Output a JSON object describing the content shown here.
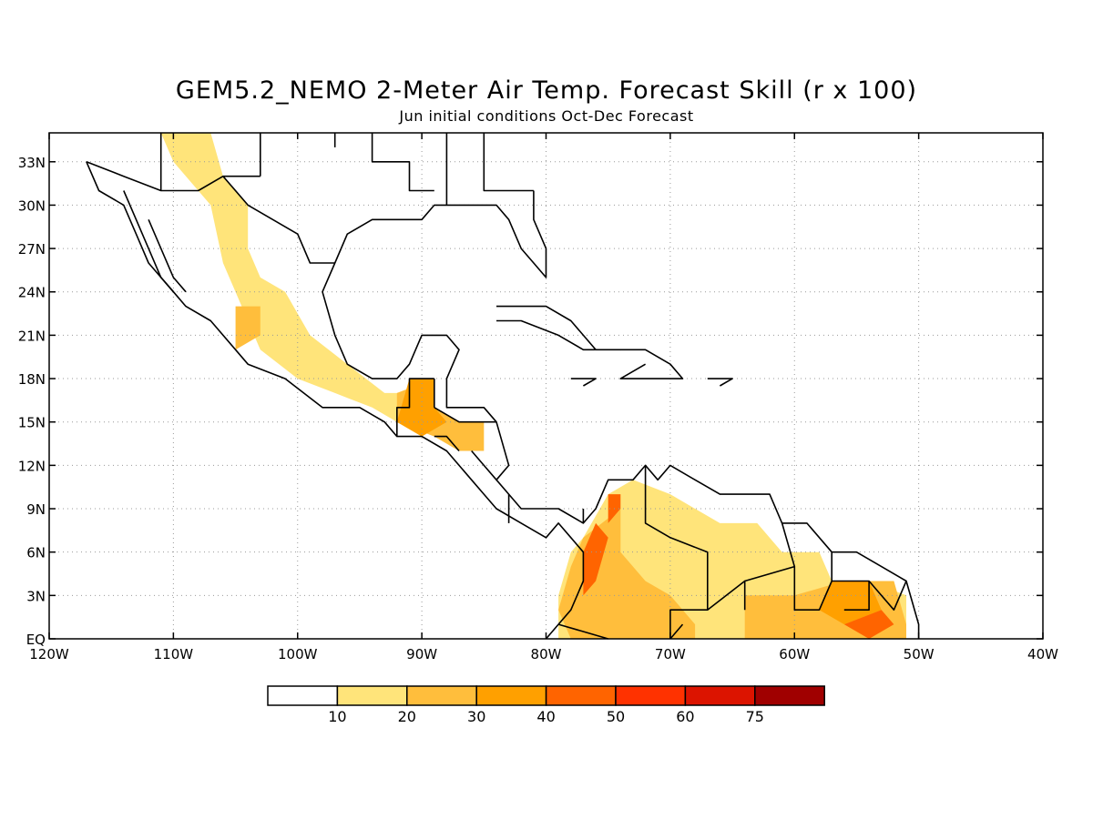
{
  "title": "GEM5.2_NEMO 2-Meter Air Temp. Forecast Skill (r x 100)",
  "subtitle": "Jun initial conditions  Oct-Dec Forecast",
  "map": {
    "lon_range": [
      -120,
      -40
    ],
    "lat_range": [
      0,
      35
    ],
    "grid": true,
    "lon_ticks": [
      {
        "value": -120,
        "label": "120W"
      },
      {
        "value": -110,
        "label": "110W"
      },
      {
        "value": -100,
        "label": "100W"
      },
      {
        "value": -90,
        "label": "90W"
      },
      {
        "value": -80,
        "label": "80W"
      },
      {
        "value": -70,
        "label": "70W"
      },
      {
        "value": -60,
        "label": "60W"
      },
      {
        "value": -50,
        "label": "50W"
      },
      {
        "value": -40,
        "label": "40W"
      }
    ],
    "lat_ticks": [
      {
        "value": 0,
        "label": "EQ"
      },
      {
        "value": 3,
        "label": "3N"
      },
      {
        "value": 6,
        "label": "6N"
      },
      {
        "value": 9,
        "label": "9N"
      },
      {
        "value": 12,
        "label": "12N"
      },
      {
        "value": 15,
        "label": "15N"
      },
      {
        "value": 18,
        "label": "18N"
      },
      {
        "value": 21,
        "label": "21N"
      },
      {
        "value": 24,
        "label": "24N"
      },
      {
        "value": 27,
        "label": "27N"
      },
      {
        "value": 30,
        "label": "30N"
      },
      {
        "value": 33,
        "label": "33N"
      }
    ]
  },
  "colorbar": {
    "labels": [
      "10",
      "20",
      "30",
      "40",
      "50",
      "60",
      "75"
    ],
    "colors": [
      "#ffffff",
      "#ffe47a",
      "#ffbe3c",
      "#ffa000",
      "#ff6400",
      "#ff3200",
      "#dc1400",
      "#a00000"
    ]
  },
  "skill_regions": [
    {
      "level": 1,
      "points": [
        [
          -111,
          35
        ],
        [
          -107,
          35
        ],
        [
          -106,
          32
        ],
        [
          -104,
          30
        ],
        [
          -104,
          27
        ],
        [
          -103,
          25
        ],
        [
          -101,
          24
        ],
        [
          -99,
          21
        ],
        [
          -96,
          19
        ],
        [
          -93,
          17
        ],
        [
          -90,
          17
        ],
        [
          -88,
          15
        ],
        [
          -90,
          14
        ],
        [
          -94,
          16
        ],
        [
          -97,
          17
        ],
        [
          -100,
          18
        ],
        [
          -103,
          20
        ],
        [
          -104,
          22
        ],
        [
          -106,
          26
        ],
        [
          -107,
          30
        ],
        [
          -110,
          33
        ]
      ]
    },
    {
      "level": 1,
      "points": [
        [
          -77,
          7
        ],
        [
          -75,
          10
        ],
        [
          -73,
          11
        ],
        [
          -70,
          10
        ],
        [
          -68,
          9
        ],
        [
          -66,
          8
        ],
        [
          -63,
          8
        ],
        [
          -61,
          6
        ],
        [
          -58,
          6
        ],
        [
          -57,
          4
        ],
        [
          -56,
          3
        ],
        [
          -54,
          4
        ],
        [
          -51,
          3
        ],
        [
          -51,
          0
        ],
        [
          -79,
          0
        ],
        [
          -79,
          3
        ],
        [
          -78,
          6
        ]
      ]
    },
    {
      "level": 2,
      "points": [
        [
          -105,
          23
        ],
        [
          -103,
          23
        ],
        [
          -103,
          21
        ],
        [
          -105,
          20
        ]
      ]
    },
    {
      "level": 2,
      "points": [
        [
          -92,
          17
        ],
        [
          -89,
          18
        ],
        [
          -89,
          16
        ],
        [
          -87,
          15
        ],
        [
          -85,
          15
        ],
        [
          -85,
          13
        ],
        [
          -87,
          13
        ],
        [
          -89,
          14
        ],
        [
          -92,
          15
        ]
      ]
    },
    {
      "level": 2,
      "points": [
        [
          -77,
          7
        ],
        [
          -74,
          9
        ],
        [
          -74,
          6
        ],
        [
          -72,
          4
        ],
        [
          -70,
          3
        ],
        [
          -68,
          1
        ],
        [
          -68,
          0
        ],
        [
          -78,
          0
        ],
        [
          -79,
          2
        ],
        [
          -78,
          5
        ]
      ]
    },
    {
      "level": 2,
      "points": [
        [
          -64,
          3
        ],
        [
          -60,
          3
        ],
        [
          -56,
          4
        ],
        [
          -52,
          4
        ],
        [
          -51,
          1
        ],
        [
          -51,
          0
        ],
        [
          -64,
          0
        ]
      ]
    },
    {
      "level": 3,
      "points": [
        [
          -91,
          18
        ],
        [
          -89,
          18
        ],
        [
          -89,
          16
        ],
        [
          -88,
          15
        ],
        [
          -90,
          14
        ],
        [
          -92,
          15
        ]
      ]
    },
    {
      "level": 3,
      "points": [
        [
          -57,
          4
        ],
        [
          -54,
          4
        ],
        [
          -53,
          2
        ],
        [
          -56,
          1
        ],
        [
          -58,
          2
        ]
      ]
    },
    {
      "level": 4,
      "points": [
        [
          -76,
          8
        ],
        [
          -75,
          7
        ],
        [
          -76,
          4
        ],
        [
          -77,
          3
        ],
        [
          -77,
          6
        ]
      ]
    },
    {
      "level": 4,
      "points": [
        [
          -75,
          10
        ],
        [
          -74,
          10
        ],
        [
          -74,
          9
        ],
        [
          -75,
          8
        ]
      ]
    },
    {
      "level": 4,
      "points": [
        [
          -56,
          1
        ],
        [
          -53,
          2
        ],
        [
          -52,
          1
        ],
        [
          -54,
          0
        ]
      ]
    }
  ],
  "coast_lines": [
    [
      [
        -117,
        33
      ],
      [
        -116,
        31
      ],
      [
        -114,
        30
      ],
      [
        -113,
        28
      ],
      [
        -112,
        26
      ],
      [
        -110,
        24
      ],
      [
        -109,
        23
      ],
      [
        -107,
        22
      ],
      [
        -105,
        20
      ],
      [
        -104,
        19
      ],
      [
        -101,
        18
      ],
      [
        -98,
        16
      ],
      [
        -95,
        16
      ],
      [
        -93,
        15
      ],
      [
        -92,
        14
      ],
      [
        -90,
        14
      ],
      [
        -88,
        13
      ],
      [
        -86,
        11
      ],
      [
        -85,
        10
      ],
      [
        -84,
        9
      ],
      [
        -82,
        8
      ],
      [
        -80,
        7
      ],
      [
        -79,
        8
      ],
      [
        -78,
        7
      ],
      [
        -77,
        6
      ],
      [
        -77,
        4
      ],
      [
        -78,
        2
      ],
      [
        -79,
        1
      ],
      [
        -80,
        0
      ]
    ],
    [
      [
        -114,
        31
      ],
      [
        -113,
        29
      ],
      [
        -112,
        27
      ],
      [
        -111,
        25
      ],
      [
        -110,
        24
      ]
    ],
    [
      [
        -112,
        29
      ],
      [
        -111,
        27
      ],
      [
        -110,
        25
      ],
      [
        -109,
        24
      ]
    ],
    [
      [
        -81,
        31
      ],
      [
        -81,
        29
      ],
      [
        -80,
        27
      ],
      [
        -80,
        25
      ],
      [
        -81,
        26
      ],
      [
        -82,
        27
      ],
      [
        -83,
        29
      ],
      [
        -84,
        30
      ],
      [
        -86,
        30
      ],
      [
        -88,
        30
      ],
      [
        -89,
        30
      ],
      [
        -90,
        29
      ],
      [
        -92,
        29
      ],
      [
        -94,
        29
      ],
      [
        -96,
        28
      ],
      [
        -97,
        26
      ],
      [
        -98,
        24
      ],
      [
        -97,
        21
      ],
      [
        -96,
        19
      ],
      [
        -94,
        18
      ],
      [
        -92,
        18
      ],
      [
        -91,
        19
      ],
      [
        -90,
        21
      ],
      [
        -88,
        21
      ],
      [
        -87,
        20
      ],
      [
        -88,
        18
      ],
      [
        -88,
        16
      ],
      [
        -87,
        16
      ],
      [
        -85,
        16
      ],
      [
        -84,
        15
      ],
      [
        -83,
        12
      ],
      [
        -84,
        11
      ],
      [
        -83,
        10
      ],
      [
        -82,
        9
      ],
      [
        -81,
        9
      ],
      [
        -80,
        9
      ],
      [
        -79,
        9
      ],
      [
        -77,
        8
      ],
      [
        -76,
        9
      ],
      [
        -75,
        11
      ],
      [
        -73,
        11
      ],
      [
        -72,
        12
      ],
      [
        -71,
        11
      ],
      [
        -70,
        12
      ],
      [
        -68,
        11
      ],
      [
        -66,
        10
      ],
      [
        -64,
        10
      ],
      [
        -62,
        10
      ],
      [
        -61,
        8
      ],
      [
        -59,
        8
      ],
      [
        -57,
        6
      ],
      [
        -55,
        6
      ],
      [
        -53,
        5
      ],
      [
        -51,
        4
      ],
      [
        -50,
        1
      ],
      [
        -50,
        0
      ]
    ],
    [
      [
        -84,
        23
      ],
      [
        -82,
        23
      ],
      [
        -80,
        23
      ],
      [
        -78,
        22
      ],
      [
        -76,
        20
      ],
      [
        -74,
        20
      ],
      [
        -77,
        20
      ],
      [
        -79,
        21
      ],
      [
        -82,
        22
      ],
      [
        -84,
        22
      ]
    ],
    [
      [
        -74,
        20
      ],
      [
        -72,
        20
      ],
      [
        -70,
        19
      ],
      [
        -69,
        18
      ],
      [
        -71,
        18
      ],
      [
        -72,
        18
      ],
      [
        -74,
        18
      ],
      [
        -72,
        19
      ]
    ],
    [
      [
        -78,
        18
      ],
      [
        -77,
        18
      ],
      [
        -76,
        18
      ],
      [
        -77,
        17.5
      ]
    ],
    [
      [
        -67,
        18
      ],
      [
        -66,
        18
      ],
      [
        -65,
        18
      ],
      [
        -66,
        17.5
      ]
    ]
  ],
  "border_lines": [
    [
      [
        -117,
        33
      ],
      [
        -114,
        32
      ],
      [
        -111,
        31
      ],
      [
        -108,
        31
      ],
      [
        -106,
        32
      ],
      [
        -104,
        30
      ],
      [
        -102,
        29
      ],
      [
        -100,
        28
      ],
      [
        -99,
        26
      ],
      [
        -97,
        26
      ]
    ],
    [
      [
        -111,
        31
      ],
      [
        -111,
        35
      ]
    ],
    [
      [
        -103,
        32
      ],
      [
        -103,
        35
      ]
    ],
    [
      [
        -103,
        32
      ],
      [
        -106,
        32
      ]
    ],
    [
      [
        -97,
        35
      ],
      [
        -97,
        34
      ]
    ],
    [
      [
        -94,
        35
      ],
      [
        -94,
        33
      ],
      [
        -91,
        33
      ],
      [
        -91,
        31
      ],
      [
        -89,
        31
      ]
    ],
    [
      [
        -88,
        35
      ],
      [
        -88,
        30
      ]
    ],
    [
      [
        -85,
        35
      ],
      [
        -85,
        31
      ],
      [
        -81,
        31
      ]
    ],
    [
      [
        -92,
        14
      ],
      [
        -92,
        16
      ],
      [
        -91,
        16
      ],
      [
        -91,
        18
      ],
      [
        -89,
        18
      ]
    ],
    [
      [
        -89,
        18
      ],
      [
        -89,
        16
      ]
    ],
    [
      [
        -89,
        16
      ],
      [
        -87,
        15
      ],
      [
        -85,
        15
      ],
      [
        -84,
        15
      ]
    ],
    [
      [
        -89,
        14
      ],
      [
        -88,
        14
      ],
      [
        -87,
        13
      ]
    ],
    [
      [
        -86,
        13
      ],
      [
        -85,
        12
      ],
      [
        -84,
        11
      ]
    ],
    [
      [
        -83,
        10
      ],
      [
        -83,
        8
      ]
    ],
    [
      [
        -77,
        8
      ],
      [
        -77,
        9
      ]
    ],
    [
      [
        -72,
        12
      ],
      [
        -72,
        8
      ],
      [
        -70,
        7
      ],
      [
        -67,
        6
      ],
      [
        -67,
        2
      ],
      [
        -70,
        2
      ],
      [
        -70,
        0
      ]
    ],
    [
      [
        -79,
        1
      ],
      [
        -75,
        0
      ]
    ],
    [
      [
        -70,
        0
      ],
      [
        -69,
        1
      ]
    ],
    [
      [
        -67,
        2
      ],
      [
        -64,
        4
      ],
      [
        -64,
        2
      ]
    ],
    [
      [
        -64,
        4
      ],
      [
        -60,
        5
      ],
      [
        -61,
        8
      ]
    ],
    [
      [
        -60,
        5
      ],
      [
        -60,
        2
      ],
      [
        -58,
        2
      ],
      [
        -57,
        4
      ],
      [
        -57,
        6
      ]
    ],
    [
      [
        -57,
        4
      ],
      [
        -54,
        4
      ],
      [
        -54,
        2
      ],
      [
        -56,
        2
      ]
    ],
    [
      [
        -54,
        4
      ],
      [
        -52,
        2
      ],
      [
        -51,
        4
      ]
    ]
  ]
}
